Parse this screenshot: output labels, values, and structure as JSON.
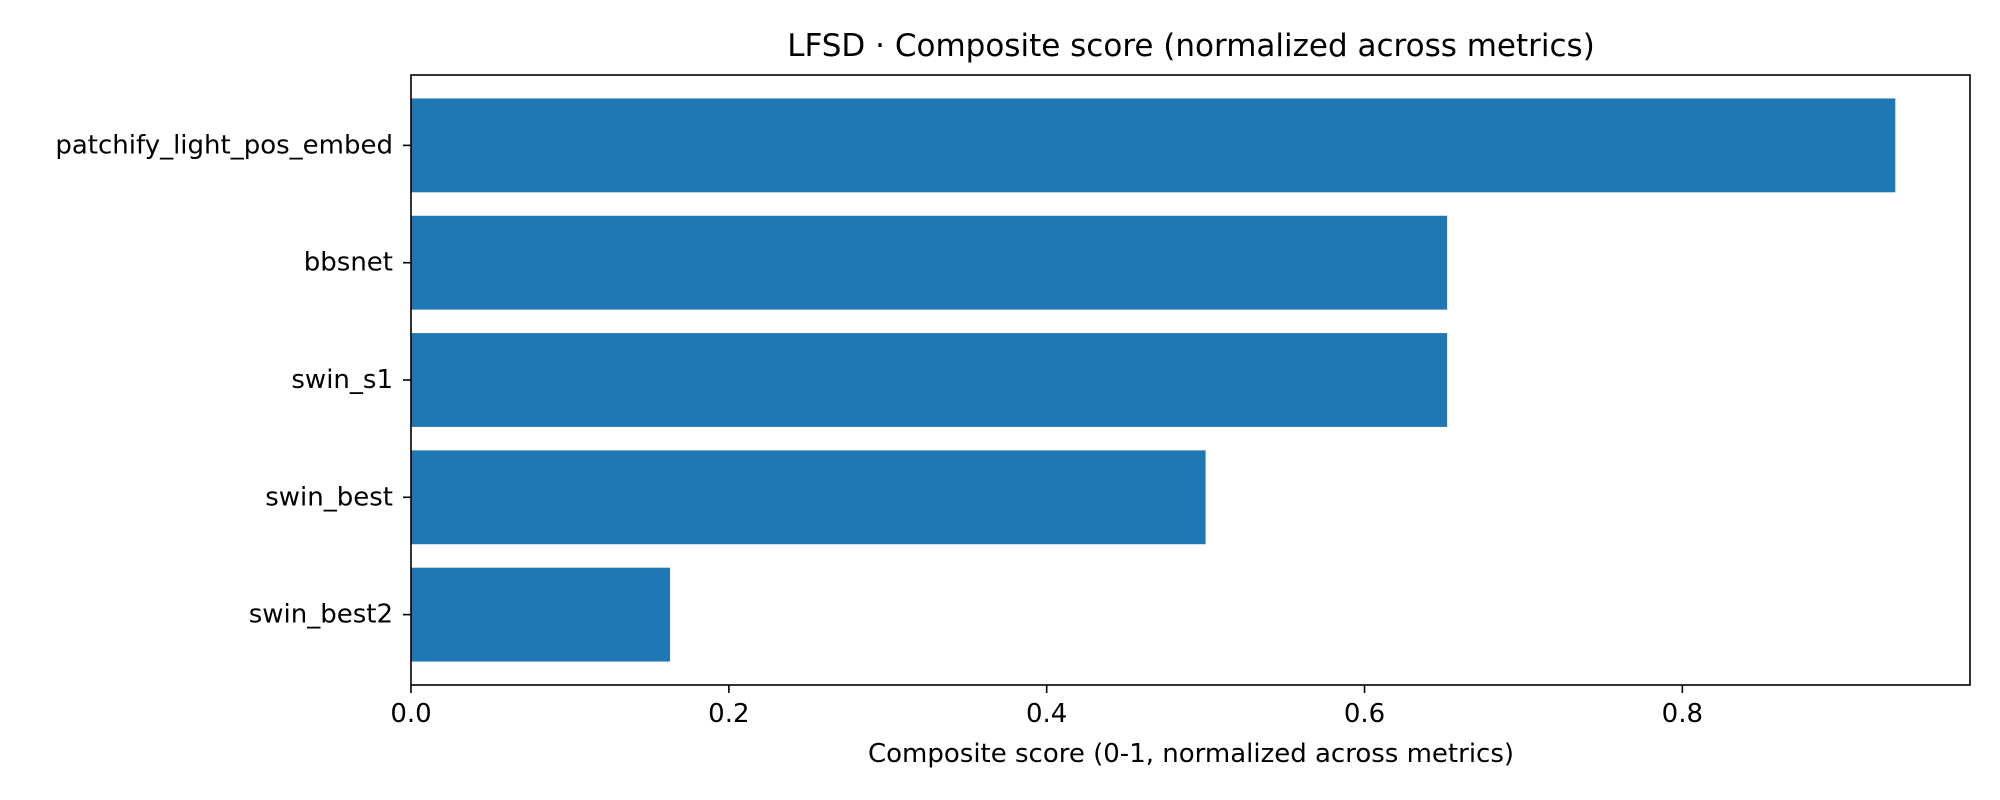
{
  "chart_data": {
    "type": "bar",
    "orientation": "horizontal",
    "title": "LFSD · Composite score (normalized across metrics)",
    "xlabel": "Composite score (0-1, normalized across metrics)",
    "ylabel": "",
    "categories": [
      "patchify_light_pos_embed",
      "bbsnet",
      "swin_s1",
      "swin_best",
      "swin_best2"
    ],
    "values": [
      0.934,
      0.652,
      0.652,
      0.5,
      0.163
    ],
    "xlim": [
      0,
      0.981
    ],
    "xticks": [
      0.0,
      0.2,
      0.4,
      0.6,
      0.8
    ],
    "xtick_labels": [
      "0.0",
      "0.2",
      "0.4",
      "0.6",
      "0.8"
    ],
    "grid": false,
    "bar_color": "#1f77b4",
    "axis_color": "#000000"
  }
}
